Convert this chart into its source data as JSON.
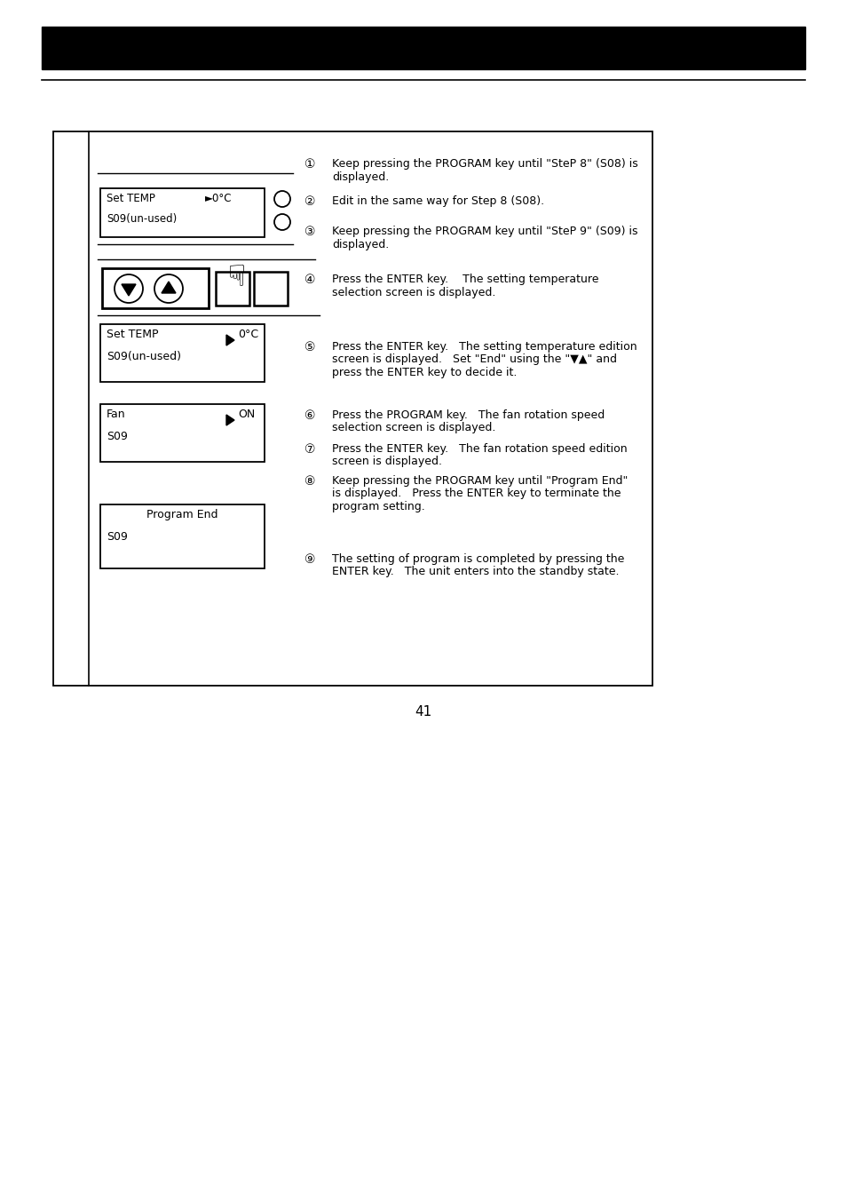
{
  "page_number": "41",
  "bg_color": "#ffffff",
  "header_color": "#000000",
  "text_color": "#000000",
  "instructions": [
    {
      "num": 1,
      "text": "Keep pressing the PROGRAM key until \"SteP 8\" (S08) is\ndisplayed."
    },
    {
      "num": 2,
      "text": "Edit in the same way for Step 8 (S08)."
    },
    {
      "num": 3,
      "text": "Keep pressing the PROGRAM key until \"SteP 9\" (S09) is\ndisplayed."
    },
    {
      "num": 4,
      "text": "Press the ENTER key.    The setting temperature\nselection screen is displayed."
    },
    {
      "num": 5,
      "text": "Press the ENTER key.   The setting temperature edition\nscreen is displayed.   Set \"End\" using the \"▼▲\" and\npress the ENTER key to decide it."
    },
    {
      "num": 6,
      "text": "Press the PROGRAM key.   The fan rotation speed\nselection screen is displayed."
    },
    {
      "num": 7,
      "text": "Press the ENTER key.   The fan rotation speed edition\nscreen is displayed."
    },
    {
      "num": 8,
      "text": "Keep pressing the PROGRAM key until \"Program End\"\nis displayed.   Press the ENTER key to terminate the\nprogram setting."
    },
    {
      "num": 9,
      "text": "The setting of program is completed by pressing the\nENTER key.   The unit enters into the standby state."
    }
  ],
  "circled_nums": [
    "①",
    "②",
    "③",
    "④",
    "⑤",
    "⑥",
    "⑦",
    "⑧",
    "⑨"
  ]
}
